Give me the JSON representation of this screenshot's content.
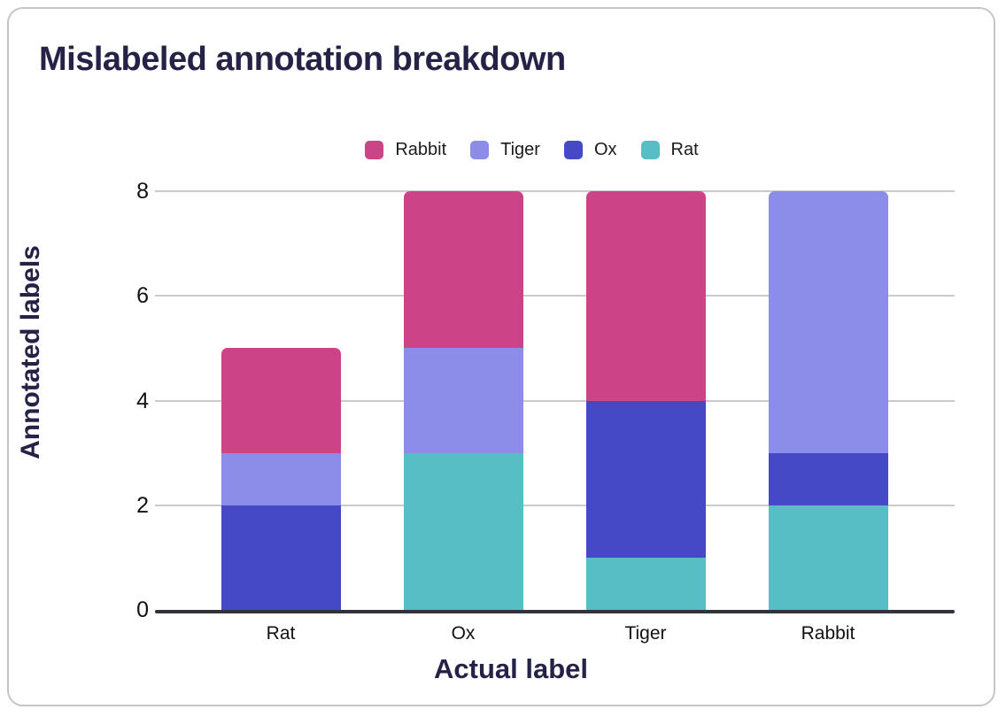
{
  "title": "Mislabeled annotation breakdown",
  "colors": {
    "title_text": "#252247",
    "axis_title_text": "#252247",
    "tick_text": "#111111",
    "gridline": "#cbcbcb",
    "axis_line": "#32323c",
    "card_border": "#c5c5c5",
    "rabbit": "#cc4487",
    "tiger": "#8c8de8",
    "ox": "#4649c5",
    "rat": "#56bec4"
  },
  "legend": [
    {
      "label": "Rabbit",
      "color": "#cc4487"
    },
    {
      "label": "Tiger",
      "color": "#8c8de8"
    },
    {
      "label": "Ox",
      "color": "#4649c5"
    },
    {
      "label": "Rat",
      "color": "#56bec4"
    }
  ],
  "chart_data": {
    "type": "bar",
    "stacked": true,
    "title": "Mislabeled annotation breakdown",
    "xlabel": "Actual label",
    "ylabel": "Annotated labels",
    "categories": [
      "Rat",
      "Ox",
      "Tiger",
      "Rabbit"
    ],
    "series": [
      {
        "name": "Rat",
        "color": "#56bec4",
        "values": [
          0,
          3,
          1,
          2
        ]
      },
      {
        "name": "Ox",
        "color": "#4649c5",
        "values": [
          2,
          0,
          3,
          1
        ]
      },
      {
        "name": "Tiger",
        "color": "#8c8de8",
        "values": [
          1,
          2,
          0,
          5
        ]
      },
      {
        "name": "Rabbit",
        "color": "#cc4487",
        "values": [
          2,
          3,
          4,
          0
        ]
      }
    ],
    "stack_order_bottom_to_top": [
      "Rat",
      "Ox",
      "Tiger",
      "Rabbit"
    ],
    "bar_totals": [
      5,
      8,
      8,
      8
    ],
    "yticks": [
      0,
      2,
      4,
      6,
      8
    ],
    "ylim": [
      0,
      8
    ],
    "grid": "horizontal",
    "legend_position": "top",
    "legend_order": [
      "Rabbit",
      "Tiger",
      "Ox",
      "Rat"
    ]
  }
}
